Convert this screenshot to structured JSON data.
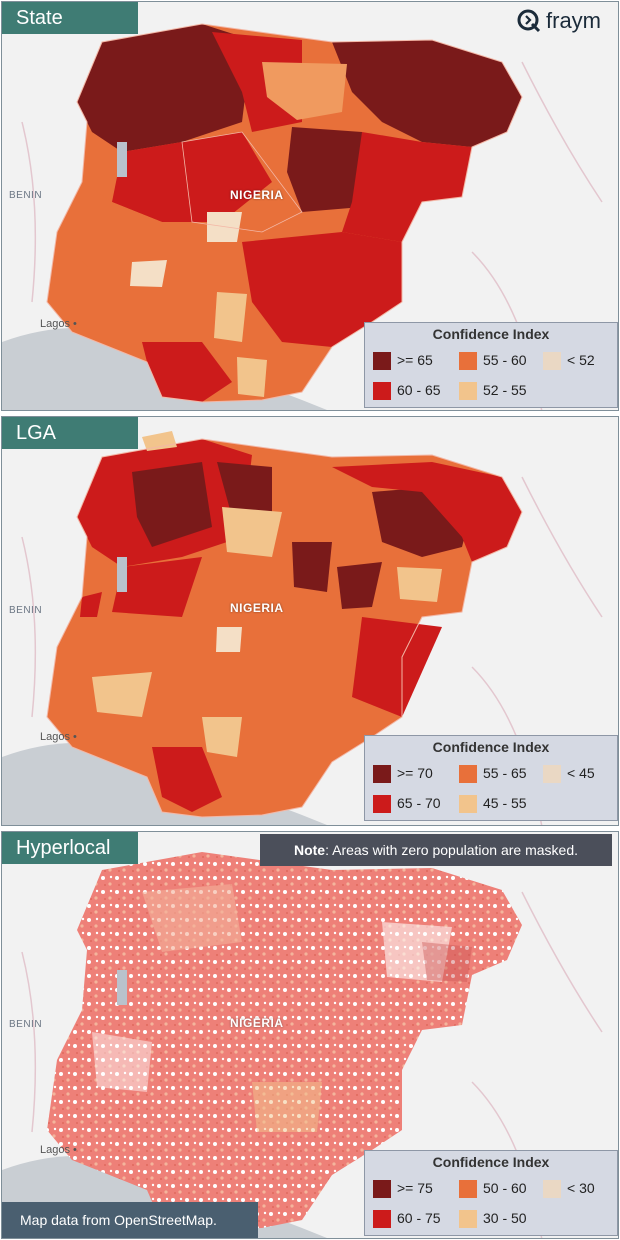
{
  "brand": {
    "logo_text": "fraym",
    "icon": "fraym-logo-icon"
  },
  "common": {
    "place_benin": "BENIN",
    "place_nigeria": "NIGERIA",
    "place_lagos": "Lagos"
  },
  "panels": [
    {
      "key": "state",
      "tab": "State",
      "legend_title": "Confidence Index",
      "legend": [
        {
          "label": ">= 65",
          "color": "#7a1a1a"
        },
        {
          "label": "55 - 60",
          "color": "#e8703a"
        },
        {
          "label": "< 52",
          "color": "#ead8c4"
        },
        {
          "label": "60 - 65",
          "color": "#cc1b1b"
        },
        {
          "label": "52 - 55",
          "color": "#f2c48c"
        }
      ]
    },
    {
      "key": "lga",
      "tab": "LGA",
      "legend_title": "Confidence Index",
      "legend": [
        {
          "label": ">= 70",
          "color": "#7a1a1a"
        },
        {
          "label": "55 - 65",
          "color": "#e8703a"
        },
        {
          "label": "< 45",
          "color": "#ead8c4"
        },
        {
          "label": "65 - 70",
          "color": "#cc1b1b"
        },
        {
          "label": "45 - 55",
          "color": "#f2c48c"
        }
      ]
    },
    {
      "key": "hyperlocal",
      "tab": "Hyperlocal",
      "legend_title": "Confidence Index",
      "legend": [
        {
          "label": ">= 75",
          "color": "#7a1a1a"
        },
        {
          "label": "50 - 60",
          "color": "#e8703a"
        },
        {
          "label": "< 30",
          "color": "#ead8c4"
        },
        {
          "label": "60 - 75",
          "color": "#cc1b1b"
        },
        {
          "label": "30 - 50",
          "color": "#f2c48c"
        }
      ]
    }
  ],
  "note": {
    "bold": "Note",
    "text": ": Areas with zero population are masked."
  },
  "attribution": "Map data from OpenStreetMap."
}
